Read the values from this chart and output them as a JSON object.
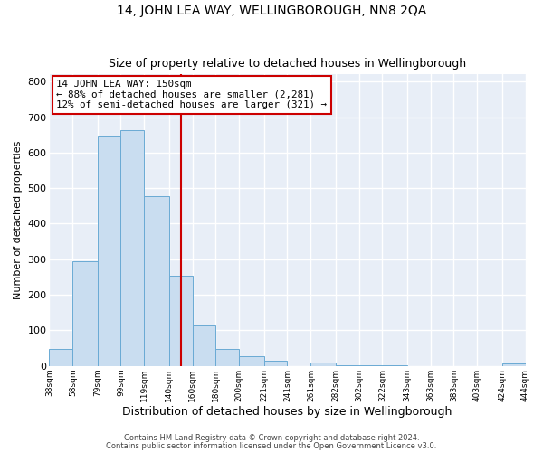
{
  "title": "14, JOHN LEA WAY, WELLINGBOROUGH, NN8 2QA",
  "subtitle": "Size of property relative to detached houses in Wellingborough",
  "xlabel": "Distribution of detached houses by size in Wellingborough",
  "ylabel": "Number of detached properties",
  "bar_edges": [
    38,
    58,
    79,
    99,
    119,
    140,
    160,
    180,
    200,
    221,
    241,
    261,
    282,
    302,
    322,
    343,
    363,
    383,
    403,
    424,
    444
  ],
  "bar_heights": [
    47,
    295,
    648,
    663,
    477,
    255,
    113,
    48,
    27,
    14,
    0,
    10,
    3,
    3,
    3,
    0,
    0,
    0,
    0,
    7
  ],
  "bar_color": "#c9ddf0",
  "bar_edge_color": "#6aaad4",
  "vline_x": 150,
  "vline_color": "#cc0000",
  "annotation_title": "14 JOHN LEA WAY: 150sqm",
  "annotation_line1": "← 88% of detached houses are smaller (2,281)",
  "annotation_line2": "12% of semi-detached houses are larger (321) →",
  "annotation_box_facecolor": "#ffffff",
  "annotation_box_edgecolor": "#cc0000",
  "ylim": [
    0,
    820
  ],
  "tick_labels": [
    "38sqm",
    "58sqm",
    "79sqm",
    "99sqm",
    "119sqm",
    "140sqm",
    "160sqm",
    "180sqm",
    "200sqm",
    "221sqm",
    "241sqm",
    "261sqm",
    "282sqm",
    "302sqm",
    "322sqm",
    "343sqm",
    "363sqm",
    "383sqm",
    "403sqm",
    "424sqm",
    "444sqm"
  ],
  "footnote1": "Contains HM Land Registry data © Crown copyright and database right 2024.",
  "footnote2": "Contains public sector information licensed under the Open Government Licence v3.0.",
  "background_color": "#ffffff",
  "plot_bg_color": "#e8eef7",
  "grid_color": "#ffffff",
  "title_fontsize": 10,
  "subtitle_fontsize": 9,
  "xlabel_fontsize": 9,
  "ylabel_fontsize": 8,
  "ytick_fontsize": 8,
  "xtick_fontsize": 6.5,
  "annotation_fontsize": 7.8,
  "footnote_fontsize": 6.0
}
